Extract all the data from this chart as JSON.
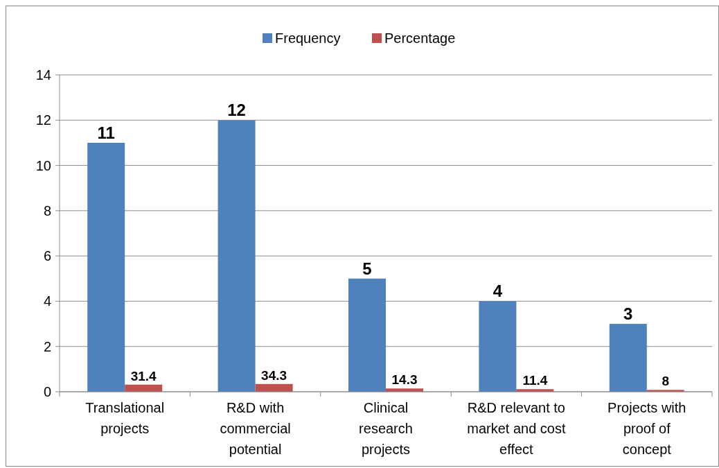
{
  "chart_data": {
    "type": "bar",
    "categories": [
      "Translational projects",
      "R&D with commercial potential",
      "Clinical research projects",
      "R&D relevant to market and cost effect",
      "Projects with proof of concept"
    ],
    "series": [
      {
        "name": "Frequency",
        "color": "#4f81bd",
        "values": [
          11,
          12,
          5,
          4,
          3
        ]
      },
      {
        "name": "Percentage",
        "color": "#c0504d",
        "values": [
          31.4,
          34.3,
          14.3,
          11.4,
          8
        ],
        "axis": "y2"
      }
    ],
    "ylim": [
      0,
      14
    ],
    "yticks": [
      0,
      2,
      4,
      6,
      8,
      10,
      12,
      14
    ],
    "y2lim": [
      0,
      1400
    ],
    "grid": "y",
    "legend": "top",
    "data_labels": true
  }
}
